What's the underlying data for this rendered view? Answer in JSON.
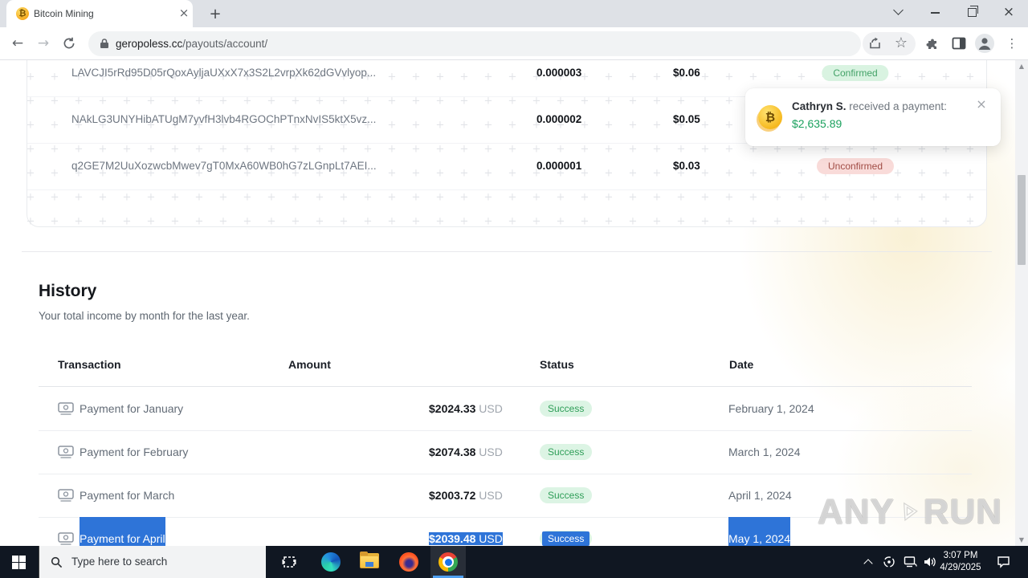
{
  "browser": {
    "tab_title": "Bitcoin Mining",
    "url_domain": "geropoless.cc",
    "url_path": "/payouts/account/"
  },
  "icons": {
    "bitcoin": "₿",
    "close": "×",
    "plus": "+",
    "back": "←",
    "forward": "→",
    "star": "☆",
    "menu": "⋮",
    "pattern_plus": "+",
    "scroll_up": "▲",
    "scroll_down": "▼"
  },
  "payouts": {
    "rows": [
      {
        "hash": "LAVCJI5rRd95D05rQoxAyljaUXxX7x3S2L2vrpXk62dGVvlyop...",
        "btc": "0.000003",
        "usd": "$0.06",
        "status": "Confirmed",
        "status_class": "confirmed"
      },
      {
        "hash": "NAkLG3UNYHibATUgM7yvfH3lvb4RGOChPTnxNvIS5ktX5vz...",
        "btc": "0.000002",
        "usd": "$0.05",
        "status": "",
        "status_class": ""
      },
      {
        "hash": "q2GE7M2UuXozwcbMwev7gT0MxA60WB0hG7zLGnpLt7AEI...",
        "btc": "0.000001",
        "usd": "$0.03",
        "status": "Unconfirmed",
        "status_class": "unconfirmed"
      }
    ]
  },
  "notification": {
    "name": "Cathryn S.",
    "message": " received a payment:",
    "amount": "$2,635.89"
  },
  "history": {
    "title": "History",
    "subtitle": "Your total income by month for the last year.",
    "columns": [
      "Transaction",
      "Amount",
      "Status",
      "Date"
    ],
    "rows": [
      {
        "label": "Payment for January",
        "amount": "$2024.33",
        "currency": " USD",
        "status": "Success",
        "date": "February 1, 2024",
        "selected": false
      },
      {
        "label": "Payment for February",
        "amount": "$2074.38",
        "currency": " USD",
        "status": "Success",
        "date": "March 1, 2024",
        "selected": false
      },
      {
        "label": "Payment for March",
        "amount": "$2003.72",
        "currency": " USD",
        "status": "Success",
        "date": "April 1, 2024",
        "selected": false
      },
      {
        "label": "Payment for April",
        "amount": "$2039.48",
        "currency": " USD",
        "status": "Success",
        "date": "May 1, 2024",
        "selected": true
      }
    ]
  },
  "watermark": {
    "left": "ANY",
    "right": "RUN"
  },
  "taskbar": {
    "search_placeholder": "Type here to search",
    "time": "3:07 PM",
    "date": "4/29/2025"
  },
  "colors": {
    "confirmed_bg": "#d9f3e1",
    "confirmed_text": "#44a268",
    "unconfirmed_bg": "#f9dbd9",
    "unconfirmed_text": "#a04c45",
    "success_bg": "#dcf4e4",
    "success_text": "#2f9e58",
    "selection_blue": "#2e74d8",
    "notification_amount_green": "#1ba15e",
    "taskbar_bg": "#101722"
  }
}
